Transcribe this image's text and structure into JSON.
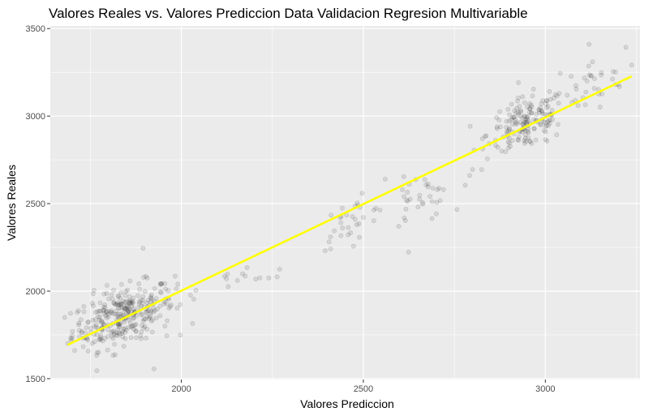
{
  "chart_data": {
    "type": "scatter",
    "title": "Valores Reales vs. Valores Prediccion Data Validacion Regresion Multivariable",
    "xlabel": "Valores Prediccion",
    "ylabel": "Valores Reales",
    "xlim": [
      1640,
      3260
    ],
    "ylim": [
      1495,
      3515
    ],
    "x_ticks": [
      2000,
      2500,
      3000
    ],
    "x_tick_labels": [
      "2000",
      "2500",
      "3000"
    ],
    "y_ticks": [
      1500,
      2000,
      2500,
      3000,
      3500
    ],
    "y_tick_labels": [
      "1500",
      "2000",
      "2500",
      "3000",
      "3500"
    ],
    "grid": true,
    "legend": "none",
    "colors": {
      "panel": "#ebebeb",
      "grid": "#ffffff",
      "points": "#000000",
      "fit_line": "#ffff00"
    },
    "fit_line": {
      "x": [
        1690,
        3235
      ],
      "y": [
        1695,
        3225
      ]
    },
    "series": [
      {
        "clusters": [
          {
            "cx": 1840,
            "cy": 1860,
            "sx": 70,
            "sy": 80,
            "n": 320
          },
          {
            "cx": 2950,
            "cy": 2960,
            "sx": 55,
            "sy": 75,
            "n": 170
          },
          {
            "cx": 2470,
            "cy": 2400,
            "sx": 45,
            "sy": 60,
            "n": 30
          },
          {
            "cx": 2650,
            "cy": 2520,
            "sx": 45,
            "sy": 70,
            "n": 35
          },
          {
            "cx": 3120,
            "cy": 3190,
            "sx": 50,
            "sy": 70,
            "n": 30
          },
          {
            "cx": 2150,
            "cy": 2050,
            "sx": 60,
            "sy": 40,
            "n": 12
          }
        ],
        "points_x": [
          1895,
          1925,
          3120,
          2270,
          2240,
          2800,
          2780,
          1760,
          1720,
          1960,
          2040,
          1990,
          2880,
          3200,
          3060,
          3090,
          2410,
          2560,
          2720,
          1700
        ],
        "points_y": [
          2245,
          1555,
          3410,
          2125,
          2075,
          2695,
          2605,
          2005,
          1740,
          1745,
          2005,
          2040,
          2800,
          3180,
          3120,
          3060,
          2310,
          2640,
          2580,
          1730
        ]
      }
    ]
  }
}
